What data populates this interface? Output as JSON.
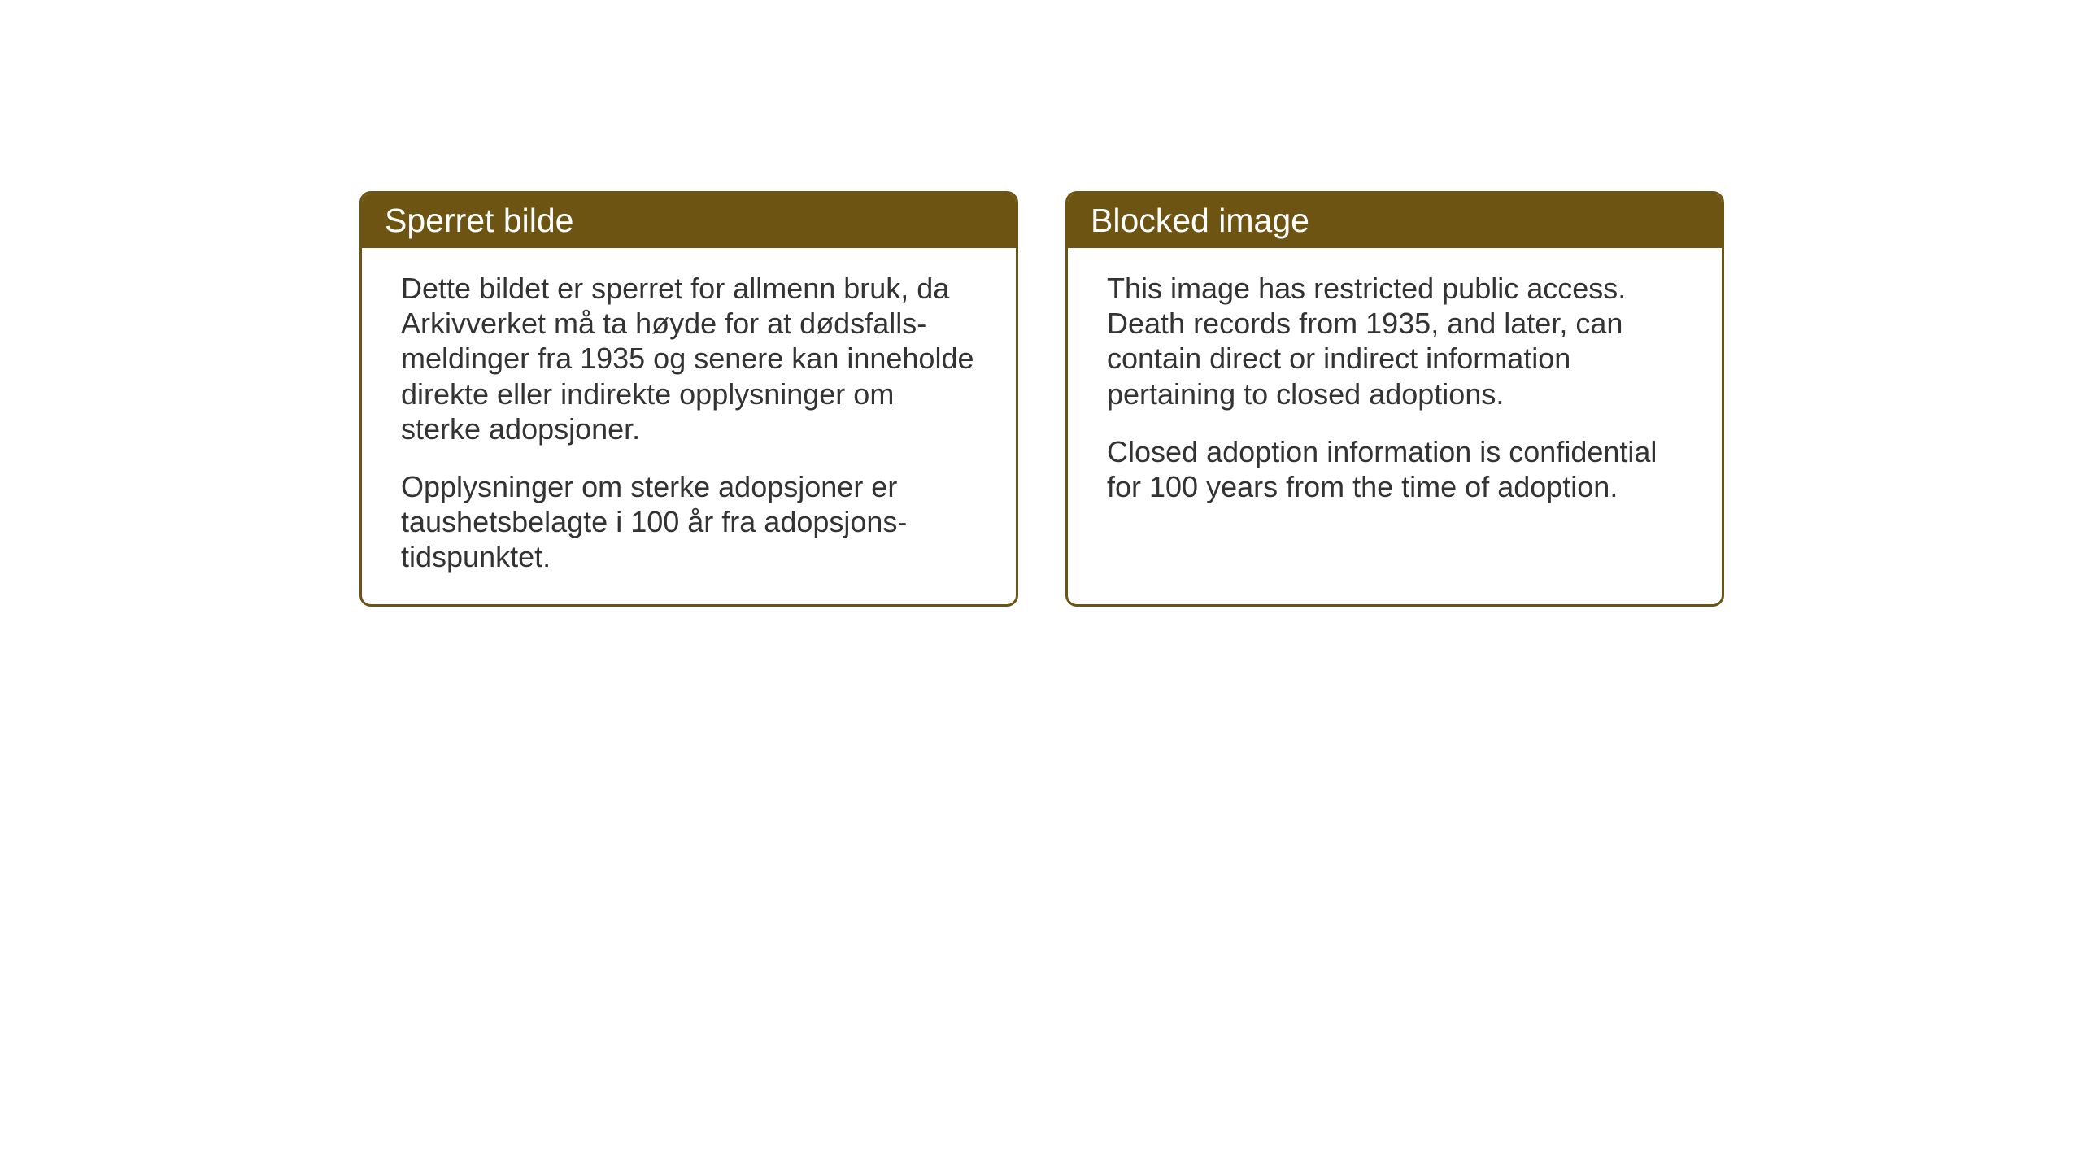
{
  "cards": {
    "norwegian": {
      "title": "Sperret bilde",
      "paragraph1": "Dette bildet er sperret for allmenn bruk, da Arkivverket må ta høyde for at dødsfalls-meldinger fra 1935 og senere kan inneholde direkte eller indirekte opplysninger om sterke adopsjoner.",
      "paragraph2": "Opplysninger om sterke adopsjoner er taushetsbelagte i 100 år fra adopsjons-tidspunktet."
    },
    "english": {
      "title": "Blocked image",
      "paragraph1": "This image has restricted public access. Death records from 1935, and later, can contain direct or indirect information pertaining to closed adoptions.",
      "paragraph2": "Closed adoption information is confidential for 100 years from the time of adoption."
    }
  },
  "styling": {
    "header_background": "#6e5413",
    "header_text_color": "#ffffff",
    "border_color": "#6e5413",
    "body_text_color": "#333333",
    "page_background": "#ffffff",
    "border_radius": 14,
    "border_width": 3,
    "title_fontsize": 41,
    "body_fontsize": 36
  }
}
